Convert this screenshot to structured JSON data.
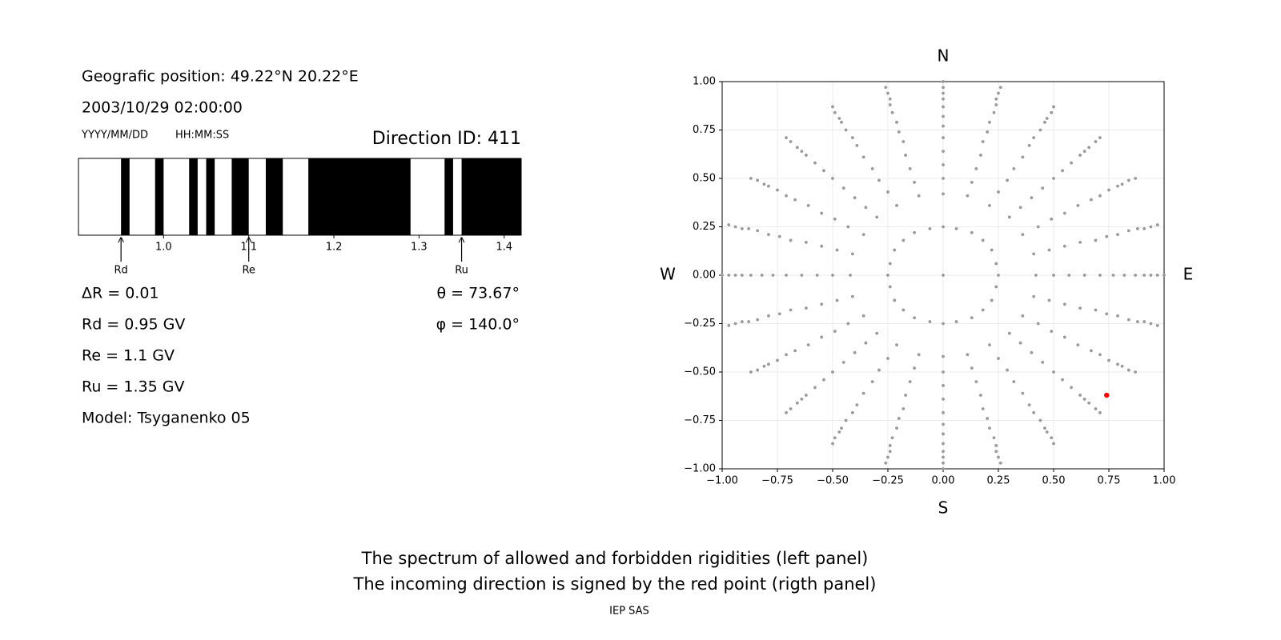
{
  "info": {
    "position": "Geografic position: 49.22°N 20.22°E",
    "datetime": "2003/10/29 02:00:00",
    "date_format": "YYYY/MM/DD",
    "time_format": "HH:MM:SS",
    "direction_id": "Direction ID: 411",
    "delta_r": "ΔR = 0.01",
    "rd": "Rd = 0.95 GV",
    "re": "Re = 1.1 GV",
    "ru": "Ru = 1.35 GV",
    "model": "Model: Tsyganenko 05",
    "theta": "θ = 73.67°",
    "phi": "φ = 140.0°"
  },
  "chart_data": [
    {
      "type": "spectrum",
      "color": "#000000",
      "xlim": [
        0.9,
        1.42
      ],
      "xticks": [
        {
          "value": 1,
          "label": "1.0"
        },
        1.1,
        1.2,
        1.3,
        1.4
      ],
      "forbidden": [
        [
          0.95,
          0.96
        ],
        [
          0.99,
          1.0
        ],
        [
          1.03,
          1.04
        ],
        [
          1.05,
          1.06
        ],
        [
          1.08,
          1.1
        ],
        [
          1.12,
          1.14
        ],
        [
          1.17,
          1.29
        ],
        [
          1.33,
          1.34
        ],
        [
          1.35,
          1.42
        ]
      ],
      "markers": [
        {
          "label": "Rd",
          "value": 0.95
        },
        {
          "label": "Re",
          "value": 1.1
        },
        {
          "label": "Ru",
          "value": 1.35
        }
      ]
    },
    {
      "type": "scatter",
      "grid": true,
      "xlim": [
        -1,
        1
      ],
      "ylim": [
        -1,
        1
      ],
      "xticks": [
        {
          "value": -1,
          "label": "−1.00"
        },
        {
          "value": -0.75,
          "label": "−0.75"
        },
        {
          "value": -0.5,
          "label": "−0.50"
        },
        {
          "value": -0.25,
          "label": "−0.25"
        },
        {
          "value": 0,
          "label": "0.00"
        },
        {
          "value": 0.25,
          "label": "0.25"
        },
        {
          "value": 0.5,
          "label": "0.50"
        },
        {
          "value": 0.75,
          "label": "0.75"
        },
        {
          "value": 1,
          "label": "1.00"
        }
      ],
      "yticks": [
        {
          "value": -1,
          "label": "−1.00"
        },
        {
          "value": -0.75,
          "label": "−0.75"
        },
        {
          "value": -0.5,
          "label": "−0.50"
        },
        {
          "value": -0.25,
          "label": "−0.25"
        },
        {
          "value": 0,
          "label": "0.00"
        },
        {
          "value": 0.25,
          "label": "0.25"
        },
        {
          "value": 0.5,
          "label": "0.50"
        },
        {
          "value": 0.75,
          "label": "0.75"
        },
        {
          "value": 1,
          "label": "1.00"
        }
      ],
      "directions": [
        "N",
        "E",
        "S",
        "W"
      ],
      "series": [
        {
          "color": "#999999",
          "x": [
            0.42,
            0.5,
            0.57,
            0.64,
            0.71,
            0.77,
            0.82,
            0.87,
            0.91,
            0.94,
            0.97,
            1
          ],
          "y": [
            0,
            0,
            0,
            0,
            0,
            0,
            0,
            0,
            0,
            0,
            0,
            0
          ]
        },
        {
          "color": "#999999",
          "x": [
            0.41,
            0.48,
            0.55,
            0.62,
            0.69,
            0.74,
            0.79,
            0.84,
            0.88,
            0.91,
            0.94,
            0.97
          ],
          "y": [
            0.11,
            0.13,
            0.15,
            0.17,
            0.18,
            0.2,
            0.21,
            0.23,
            0.24,
            0.24,
            0.25,
            0.26
          ]
        },
        {
          "color": "#999999",
          "x": [
            0.36,
            0.43,
            0.49,
            0.55,
            0.61,
            0.67,
            0.71,
            0.75,
            0.79,
            0.81,
            0.84,
            0.87
          ],
          "y": [
            0.21,
            0.25,
            0.29,
            0.32,
            0.36,
            0.39,
            0.41,
            0.44,
            0.46,
            0.47,
            0.49,
            0.5
          ]
        },
        {
          "color": "#999999",
          "x": [
            0.3,
            0.35,
            0.4,
            0.45,
            0.5,
            0.54,
            0.58,
            0.62,
            0.64,
            0.66,
            0.69,
            0.71
          ],
          "y": [
            0.3,
            0.35,
            0.4,
            0.45,
            0.5,
            0.54,
            0.58,
            0.62,
            0.64,
            0.66,
            0.69,
            0.71
          ]
        },
        {
          "color": "#999999",
          "x": [
            0.21,
            0.25,
            0.29,
            0.32,
            0.36,
            0.39,
            0.41,
            0.44,
            0.46,
            0.47,
            0.49,
            0.5
          ],
          "y": [
            0.36,
            0.43,
            0.49,
            0.55,
            0.61,
            0.67,
            0.71,
            0.75,
            0.79,
            0.81,
            0.84,
            0.87
          ]
        },
        {
          "color": "#999999",
          "x": [
            0.11,
            0.13,
            0.15,
            0.17,
            0.18,
            0.2,
            0.21,
            0.23,
            0.24,
            0.24,
            0.25,
            0.26
          ],
          "y": [
            0.41,
            0.48,
            0.55,
            0.62,
            0.69,
            0.74,
            0.79,
            0.84,
            0.88,
            0.91,
            0.94,
            0.97
          ]
        },
        {
          "color": "#999999",
          "x": [
            0,
            0,
            0,
            0,
            0,
            0,
            0,
            0,
            0,
            0,
            0,
            0
          ],
          "y": [
            0.42,
            0.5,
            0.57,
            0.64,
            0.71,
            0.77,
            0.82,
            0.87,
            0.91,
            0.94,
            0.97,
            1
          ]
        },
        {
          "color": "#999999",
          "x": [
            -0.11,
            -0.13,
            -0.15,
            -0.17,
            -0.18,
            -0.2,
            -0.21,
            -0.23,
            -0.24,
            -0.24,
            -0.25,
            -0.26
          ],
          "y": [
            0.41,
            0.48,
            0.55,
            0.62,
            0.69,
            0.74,
            0.79,
            0.84,
            0.88,
            0.91,
            0.94,
            0.97
          ]
        },
        {
          "color": "#999999",
          "x": [
            -0.21,
            -0.25,
            -0.29,
            -0.32,
            -0.36,
            -0.39,
            -0.41,
            -0.44,
            -0.46,
            -0.47,
            -0.49,
            -0.5
          ],
          "y": [
            0.36,
            0.43,
            0.49,
            0.55,
            0.61,
            0.67,
            0.71,
            0.75,
            0.79,
            0.81,
            0.84,
            0.87
          ]
        },
        {
          "color": "#999999",
          "x": [
            -0.3,
            -0.35,
            -0.4,
            -0.45,
            -0.5,
            -0.54,
            -0.58,
            -0.62,
            -0.64,
            -0.66,
            -0.69,
            -0.71
          ],
          "y": [
            0.3,
            0.35,
            0.4,
            0.45,
            0.5,
            0.54,
            0.58,
            0.62,
            0.64,
            0.66,
            0.69,
            0.71
          ]
        },
        {
          "color": "#999999",
          "x": [
            -0.36,
            -0.43,
            -0.49,
            -0.55,
            -0.61,
            -0.67,
            -0.71,
            -0.75,
            -0.79,
            -0.81,
            -0.84,
            -0.87
          ],
          "y": [
            0.21,
            0.25,
            0.29,
            0.32,
            0.36,
            0.39,
            0.41,
            0.44,
            0.46,
            0.47,
            0.49,
            0.5
          ]
        },
        {
          "color": "#999999",
          "x": [
            -0.41,
            -0.48,
            -0.55,
            -0.62,
            -0.69,
            -0.74,
            -0.79,
            -0.84,
            -0.88,
            -0.91,
            -0.94,
            -0.97
          ],
          "y": [
            0.11,
            0.13,
            0.15,
            0.17,
            0.18,
            0.2,
            0.21,
            0.23,
            0.24,
            0.24,
            0.25,
            0.26
          ]
        },
        {
          "color": "#999999",
          "x": [
            -0.42,
            -0.5,
            -0.57,
            -0.64,
            -0.71,
            -0.77,
            -0.82,
            -0.87,
            -0.91,
            -0.94,
            -0.97,
            -1
          ],
          "y": [
            0,
            0,
            0,
            0,
            0,
            0,
            0,
            0,
            0,
            0,
            0,
            0
          ]
        },
        {
          "color": "#999999",
          "x": [
            -0.41,
            -0.48,
            -0.55,
            -0.62,
            -0.69,
            -0.74,
            -0.79,
            -0.84,
            -0.88,
            -0.91,
            -0.94,
            -0.97
          ],
          "y": [
            -0.11,
            -0.13,
            -0.15,
            -0.17,
            -0.18,
            -0.2,
            -0.21,
            -0.23,
            -0.24,
            -0.24,
            -0.25,
            -0.26
          ]
        },
        {
          "color": "#999999",
          "x": [
            -0.36,
            -0.43,
            -0.49,
            -0.55,
            -0.61,
            -0.67,
            -0.71,
            -0.75,
            -0.79,
            -0.81,
            -0.84,
            -0.87
          ],
          "y": [
            -0.21,
            -0.25,
            -0.29,
            -0.32,
            -0.36,
            -0.39,
            -0.41,
            -0.44,
            -0.46,
            -0.47,
            -0.49,
            -0.5
          ]
        },
        {
          "color": "#999999",
          "x": [
            -0.3,
            -0.35,
            -0.4,
            -0.45,
            -0.5,
            -0.54,
            -0.58,
            -0.62,
            -0.64,
            -0.66,
            -0.69,
            -0.71
          ],
          "y": [
            -0.3,
            -0.35,
            -0.4,
            -0.45,
            -0.5,
            -0.54,
            -0.58,
            -0.62,
            -0.64,
            -0.66,
            -0.69,
            -0.71
          ]
        },
        {
          "color": "#999999",
          "x": [
            -0.21,
            -0.25,
            -0.29,
            -0.32,
            -0.36,
            -0.39,
            -0.41,
            -0.44,
            -0.46,
            -0.47,
            -0.49,
            -0.5
          ],
          "y": [
            -0.36,
            -0.43,
            -0.49,
            -0.55,
            -0.61,
            -0.67,
            -0.71,
            -0.75,
            -0.79,
            -0.81,
            -0.84,
            -0.87
          ]
        },
        {
          "color": "#999999",
          "x": [
            -0.11,
            -0.13,
            -0.15,
            -0.17,
            -0.18,
            -0.2,
            -0.21,
            -0.23,
            -0.24,
            -0.24,
            -0.25,
            -0.26
          ],
          "y": [
            -0.41,
            -0.48,
            -0.55,
            -0.62,
            -0.69,
            -0.74,
            -0.79,
            -0.84,
            -0.88,
            -0.91,
            -0.94,
            -0.97
          ]
        },
        {
          "color": "#999999",
          "x": [
            0,
            0,
            0,
            0,
            0,
            0,
            0,
            0,
            0,
            0,
            0,
            0
          ],
          "y": [
            -0.42,
            -0.5,
            -0.57,
            -0.64,
            -0.71,
            -0.77,
            -0.82,
            -0.87,
            -0.91,
            -0.94,
            -0.97,
            -1
          ]
        },
        {
          "color": "#999999",
          "x": [
            0.11,
            0.13,
            0.15,
            0.17,
            0.18,
            0.2,
            0.21,
            0.23,
            0.24,
            0.24,
            0.25,
            0.26
          ],
          "y": [
            -0.41,
            -0.48,
            -0.55,
            -0.62,
            -0.69,
            -0.74,
            -0.79,
            -0.84,
            -0.88,
            -0.91,
            -0.94,
            -0.97
          ]
        },
        {
          "color": "#999999",
          "x": [
            0.21,
            0.25,
            0.29,
            0.32,
            0.36,
            0.39,
            0.41,
            0.44,
            0.46,
            0.47,
            0.49,
            0.5
          ],
          "y": [
            -0.36,
            -0.43,
            -0.49,
            -0.55,
            -0.61,
            -0.67,
            -0.71,
            -0.75,
            -0.79,
            -0.81,
            -0.84,
            -0.87
          ]
        },
        {
          "color": "#999999",
          "x": [
            0.3,
            0.35,
            0.4,
            0.45,
            0.5,
            0.54,
            0.58,
            0.62,
            0.64,
            0.66,
            0.69,
            0.71
          ],
          "y": [
            -0.3,
            -0.35,
            -0.4,
            -0.45,
            -0.5,
            -0.54,
            -0.58,
            -0.62,
            -0.64,
            -0.66,
            -0.69,
            -0.71
          ]
        },
        {
          "color": "#999999",
          "x": [
            0.36,
            0.43,
            0.49,
            0.55,
            0.61,
            0.67,
            0.71,
            0.75,
            0.79,
            0.81,
            0.84,
            0.87
          ],
          "y": [
            -0.21,
            -0.25,
            -0.29,
            -0.32,
            -0.36,
            -0.39,
            -0.41,
            -0.44,
            -0.46,
            -0.47,
            -0.49,
            -0.5
          ]
        },
        {
          "color": "#999999",
          "x": [
            0.41,
            0.48,
            0.55,
            0.62,
            0.69,
            0.74,
            0.79,
            0.84,
            0.88,
            0.91,
            0.94,
            0.97
          ],
          "y": [
            -0.11,
            -0.13,
            -0.15,
            -0.17,
            -0.18,
            -0.2,
            -0.21,
            -0.23,
            -0.24,
            -0.24,
            -0.25,
            -0.26
          ]
        },
        {
          "color": "#999999",
          "x": [
            0,
            0.25,
            0.24,
            0.22,
            0.18,
            0.13,
            0.06,
            0,
            -0.06,
            -0.13,
            -0.18,
            -0.22,
            -0.24,
            -0.25,
            -0.24,
            -0.22,
            -0.18,
            -0.13,
            -0.06,
            0,
            0.06,
            0.13,
            0.18,
            0.22,
            0.24
          ],
          "y": [
            0,
            0,
            0.06,
            0.13,
            0.18,
            0.22,
            0.24,
            0.25,
            0.24,
            0.22,
            0.18,
            0.13,
            0.06,
            0,
            -0.06,
            -0.13,
            -0.18,
            -0.22,
            -0.24,
            -0.25,
            -0.24,
            -0.22,
            -0.18,
            -0.13,
            -0.06
          ]
        },
        {
          "color": "#ff0000",
          "x": [
            0.74
          ],
          "y": [
            -0.62
          ]
        }
      ]
    }
  ],
  "footer": {
    "lines": [
      "The spectrum of allowed and forbidden rigidities (left panel)",
      "The incoming direction is signed by the red point (rigth panel)"
    ],
    "credit": "IEP SAS"
  }
}
